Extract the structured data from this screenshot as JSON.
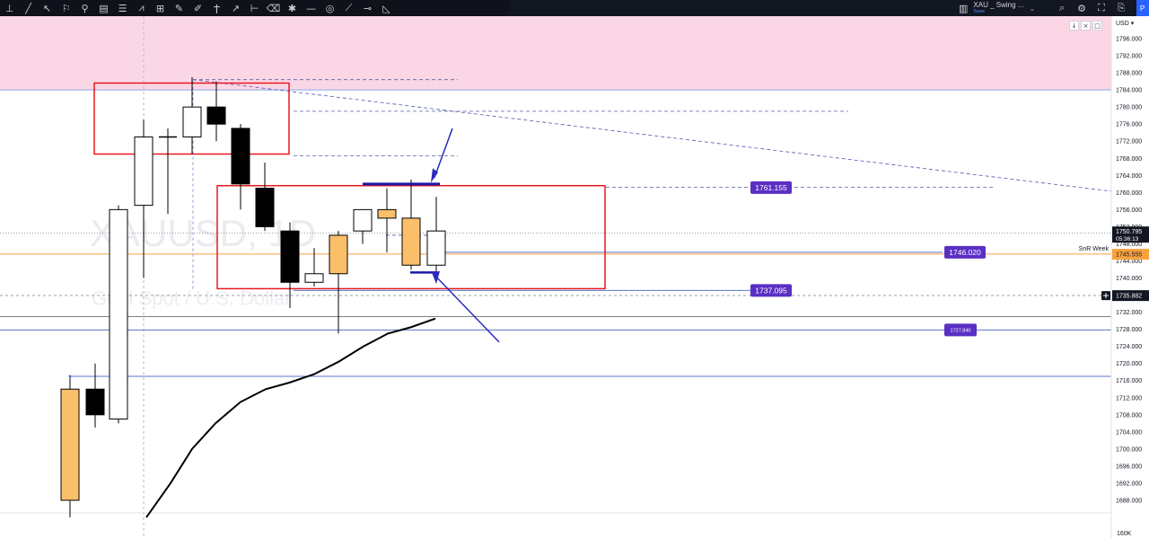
{
  "toolbar": {
    "tools": [
      {
        "name": "cursor-icon",
        "glyph": "⊥"
      },
      {
        "name": "trendline-icon",
        "glyph": "╱"
      },
      {
        "name": "arrow-pointer-icon",
        "glyph": "↖"
      },
      {
        "name": "flag-icon",
        "glyph": "⚐"
      },
      {
        "name": "pin-icon",
        "glyph": "⚲"
      },
      {
        "name": "long-position-icon",
        "glyph": "▤"
      },
      {
        "name": "fib-icon",
        "glyph": "☰"
      },
      {
        "name": "pattern-icon",
        "glyph": "⩘"
      },
      {
        "name": "range-icon",
        "glyph": "⊞"
      },
      {
        "name": "brush-icon",
        "glyph": "✎"
      },
      {
        "name": "pencil-icon",
        "glyph": "✐"
      },
      {
        "name": "text-icon",
        "glyph": "Ϯ"
      },
      {
        "name": "curve-icon",
        "glyph": "↗"
      },
      {
        "name": "ruler-icon",
        "glyph": "⊢"
      },
      {
        "name": "eraser-icon",
        "glyph": "⌫"
      },
      {
        "name": "node-icon",
        "glyph": "✱"
      },
      {
        "name": "horizontal-line-icon",
        "glyph": "—"
      },
      {
        "name": "target-icon",
        "glyph": "◎"
      },
      {
        "name": "measure-icon",
        "glyph": "⟋"
      },
      {
        "name": "h-ray-icon",
        "glyph": "⊸"
      },
      {
        "name": "arc-icon",
        "glyph": "◺"
      }
    ],
    "symbol_glyph": "▥",
    "symbol_title": "XAU _ Swing ...",
    "symbol_status": "Save",
    "caret": "⌄",
    "right_icons": [
      {
        "name": "search-icon",
        "glyph": "⌕"
      },
      {
        "name": "gear-icon",
        "glyph": "⚙"
      },
      {
        "name": "fullscreen-icon",
        "glyph": "⛶"
      },
      {
        "name": "camera-icon",
        "glyph": "⎘"
      }
    ],
    "publish_label": "P"
  },
  "mini_controls": {
    "down": "↓",
    "close": "×",
    "restore": "□"
  },
  "currency_label": "USD ▾",
  "colors": {
    "up_candle": "#ffffff",
    "down_candle": "#000000",
    "highlight_candle": "#fbbf6a",
    "zone_pink": "#fbd7e5",
    "red_box": "#e5191e",
    "blue": "#1a1aa8",
    "label_purple": "#5a2fc4",
    "orange_line": "#f7a23f"
  },
  "chart_data": {
    "type": "candlestick",
    "symbol": "XAUUSD",
    "watermark_symbol": "XAUUSD, 1D",
    "watermark_desc": "Gold Spot / U.S. Dollar",
    "y_axis": {
      "ylim": [
        1684,
        1799
      ],
      "ticks": [
        "1796.000",
        "1792.000",
        "1788.000",
        "1784.000",
        "1780.000",
        "1776.000",
        "1772.000",
        "1768.000",
        "1764.000",
        "1760.000",
        "1756.000",
        "1752.000",
        "1748.000",
        "1744.000",
        "1740.000",
        "1736.000",
        "1732.000",
        "1728.000",
        "1724.000",
        "1720.000",
        "1716.000",
        "1712.000",
        "1708.000",
        "1704.000",
        "1700.000",
        "1696.000",
        "1692.000",
        "1688.000"
      ],
      "bottom_label": "160K"
    },
    "candles": [
      {
        "o": 1688.0,
        "h": 1717.0,
        "l": 1684.0,
        "c": 1714.0,
        "color": "highlight"
      },
      {
        "o": 1714.0,
        "h": 1720.0,
        "l": 1705.0,
        "c": 1708.0,
        "color": "down"
      },
      {
        "o": 1707.0,
        "h": 1757.0,
        "l": 1706.0,
        "c": 1756.0,
        "color": "up"
      },
      {
        "o": 1757.0,
        "h": 1777.0,
        "l": 1740.0,
        "c": 1773.0,
        "color": "up"
      },
      {
        "o": 1773.0,
        "h": 1775.0,
        "l": 1755.0,
        "c": 1773.0,
        "color": "doji"
      },
      {
        "o": 1773.0,
        "h": 1787.0,
        "l": 1769.0,
        "c": 1780.0,
        "color": "up"
      },
      {
        "o": 1780.0,
        "h": 1786.0,
        "l": 1772.0,
        "c": 1776.0,
        "color": "down"
      },
      {
        "o": 1775.0,
        "h": 1776.0,
        "l": 1756.0,
        "c": 1762.0,
        "color": "down"
      },
      {
        "o": 1761.0,
        "h": 1767.0,
        "l": 1751.0,
        "c": 1752.0,
        "color": "down"
      },
      {
        "o": 1751.0,
        "h": 1753.0,
        "l": 1733.0,
        "c": 1739.0,
        "color": "down"
      },
      {
        "o": 1739.0,
        "h": 1747.0,
        "l": 1738.0,
        "c": 1741.0,
        "color": "up"
      },
      {
        "o": 1741.0,
        "h": 1751.0,
        "l": 1727.0,
        "c": 1750.0,
        "color": "highlight"
      },
      {
        "o": 1751.0,
        "h": 1756.0,
        "l": 1748.0,
        "c": 1756.0,
        "color": "up"
      },
      {
        "o": 1756.0,
        "h": 1761.0,
        "l": 1746.0,
        "c": 1754.0,
        "color": "highlight"
      },
      {
        "o": 1754.0,
        "h": 1763.0,
        "l": 1742.0,
        "c": 1743.0,
        "color": "highlight"
      },
      {
        "o": 1743.0,
        "h": 1759.0,
        "l": 1741.0,
        "c": 1751.0,
        "color": "up"
      }
    ],
    "moving_average": [
      1684,
      1692,
      1700,
      1706,
      1711,
      1714,
      1716,
      1718,
      1721,
      1724,
      1727,
      1729,
      1730,
      1732
    ],
    "levels": [
      {
        "value": 1761.155,
        "label": "1761.155",
        "style": "dashed"
      },
      {
        "value": 1746.02,
        "label": "1746.020",
        "style": "solid"
      },
      {
        "value": 1737.095,
        "label": "1737.095",
        "style": "solid"
      },
      {
        "value": 1727.84,
        "label": "1727.840",
        "style": "solid"
      },
      {
        "value": 1717.0,
        "label": "",
        "style": "solid"
      }
    ],
    "current_price": {
      "label": "1750.795",
      "countdown": "05:36:13"
    },
    "snr_week": {
      "label": "SnR Week",
      "value": "1745.555"
    },
    "crosshair_price": "1735.882",
    "supply_zone": {
      "from": 1784.0,
      "to": 1799.0
    },
    "red_boxes": [
      {
        "top": 1785.6,
        "bottom": 1769.0
      },
      {
        "top": 1761.6,
        "bottom": 1737.5
      }
    ],
    "dashed_levels": [
      1786.4,
      1779.0,
      1768.6,
      1761.2,
      1750.0
    ]
  }
}
